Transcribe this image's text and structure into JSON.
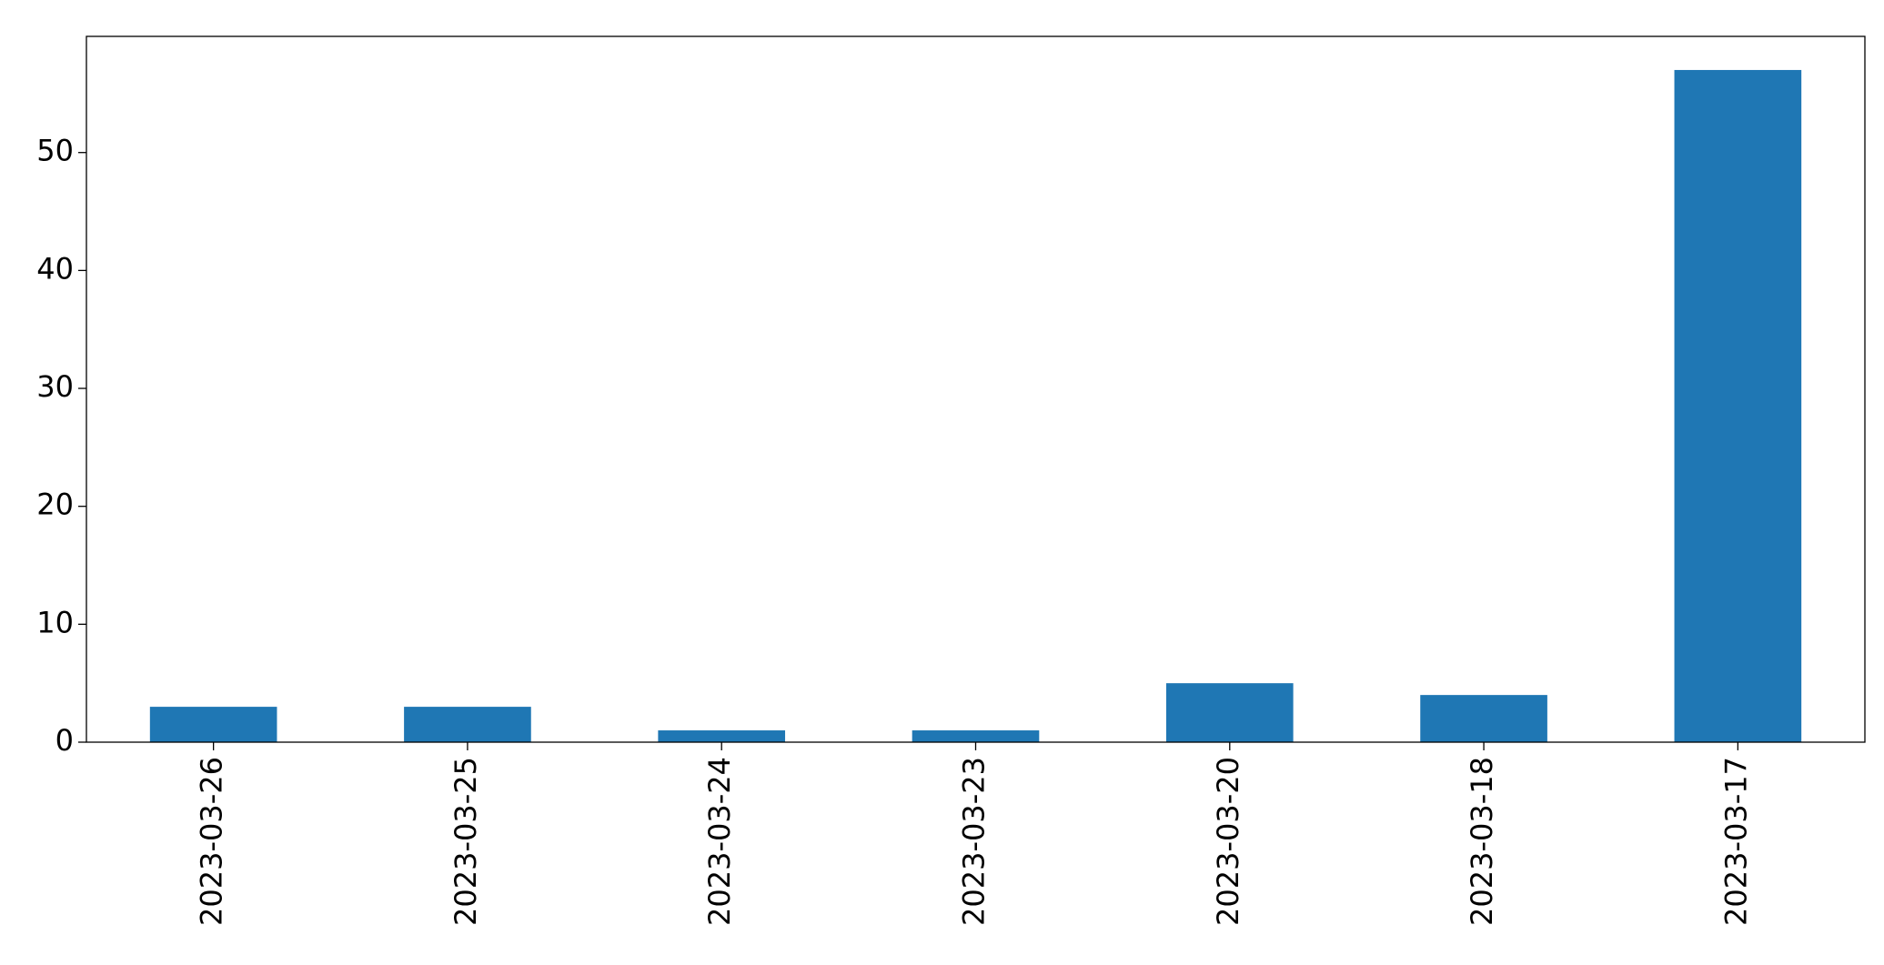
{
  "chart_data": {
    "type": "bar",
    "categories": [
      "2023-03-26",
      "2023-03-25",
      "2023-03-24",
      "2023-03-23",
      "2023-03-20",
      "2023-03-18",
      "2023-03-17"
    ],
    "values": [
      3,
      3,
      1,
      1,
      5,
      4,
      57
    ],
    "color": "#1f77b4",
    "ylim": [
      0,
      59.85
    ],
    "yticks": [
      0,
      10,
      20,
      30,
      40,
      50
    ],
    "grid": false
  }
}
